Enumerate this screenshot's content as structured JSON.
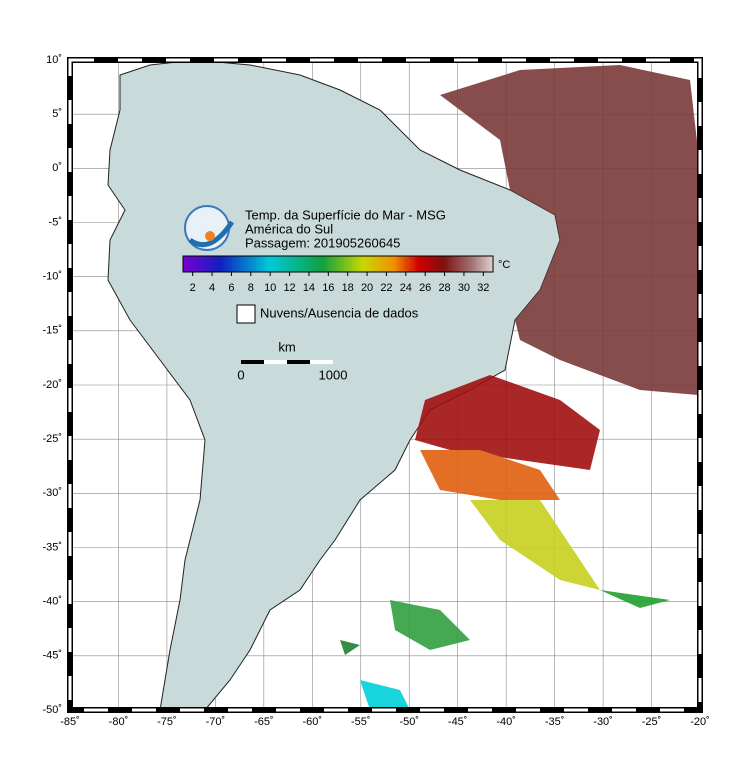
{
  "map": {
    "title_lines": [
      "Temp. da Superfície do Mar - MSG",
      "América do Sul",
      "Passagem: 201905260645"
    ],
    "lon_range": [
      -85,
      -20
    ],
    "lat_range": [
      -50,
      10
    ],
    "lon_ticks": [
      {
        "value": -85,
        "label": "-85˚"
      },
      {
        "value": -80,
        "label": "-80˚"
      },
      {
        "value": -75,
        "label": "-75˚"
      },
      {
        "value": -70,
        "label": "-70˚"
      },
      {
        "value": -65,
        "label": "-65˚"
      },
      {
        "value": -60,
        "label": "-60˚"
      },
      {
        "value": -55,
        "label": "-55˚"
      },
      {
        "value": -50,
        "label": "-50˚"
      },
      {
        "value": -45,
        "label": "-45˚"
      },
      {
        "value": -40,
        "label": "-40˚"
      },
      {
        "value": -35,
        "label": "-35˚"
      },
      {
        "value": -30,
        "label": "-30˚"
      },
      {
        "value": -25,
        "label": "-25˚"
      },
      {
        "value": -20,
        "label": "-20˚"
      }
    ],
    "lat_ticks": [
      {
        "value": 10,
        "label": "10˚"
      },
      {
        "value": 5,
        "label": "5˚"
      },
      {
        "value": 0,
        "label": "0˚"
      },
      {
        "value": -5,
        "label": "-5˚"
      },
      {
        "value": -10,
        "label": "-10˚"
      },
      {
        "value": -15,
        "label": "-15˚"
      },
      {
        "value": -20,
        "label": "-20˚"
      },
      {
        "value": -25,
        "label": "-25˚"
      },
      {
        "value": -30,
        "label": "-30˚"
      },
      {
        "value": -35,
        "label": "-35˚"
      },
      {
        "value": -40,
        "label": "-40˚"
      },
      {
        "value": -45,
        "label": "-45˚"
      },
      {
        "value": -50,
        "label": "-50˚"
      }
    ],
    "colorbar": {
      "range": [
        1,
        33
      ],
      "ticks": [
        2,
        4,
        6,
        8,
        10,
        12,
        14,
        16,
        18,
        20,
        22,
        24,
        26,
        28,
        30,
        32
      ],
      "unit": "°C"
    },
    "legend": "Nuvens/Ausencia de dados",
    "scale_bar": {
      "unit": "km",
      "labels": [
        "0",
        "1000"
      ]
    }
  }
}
